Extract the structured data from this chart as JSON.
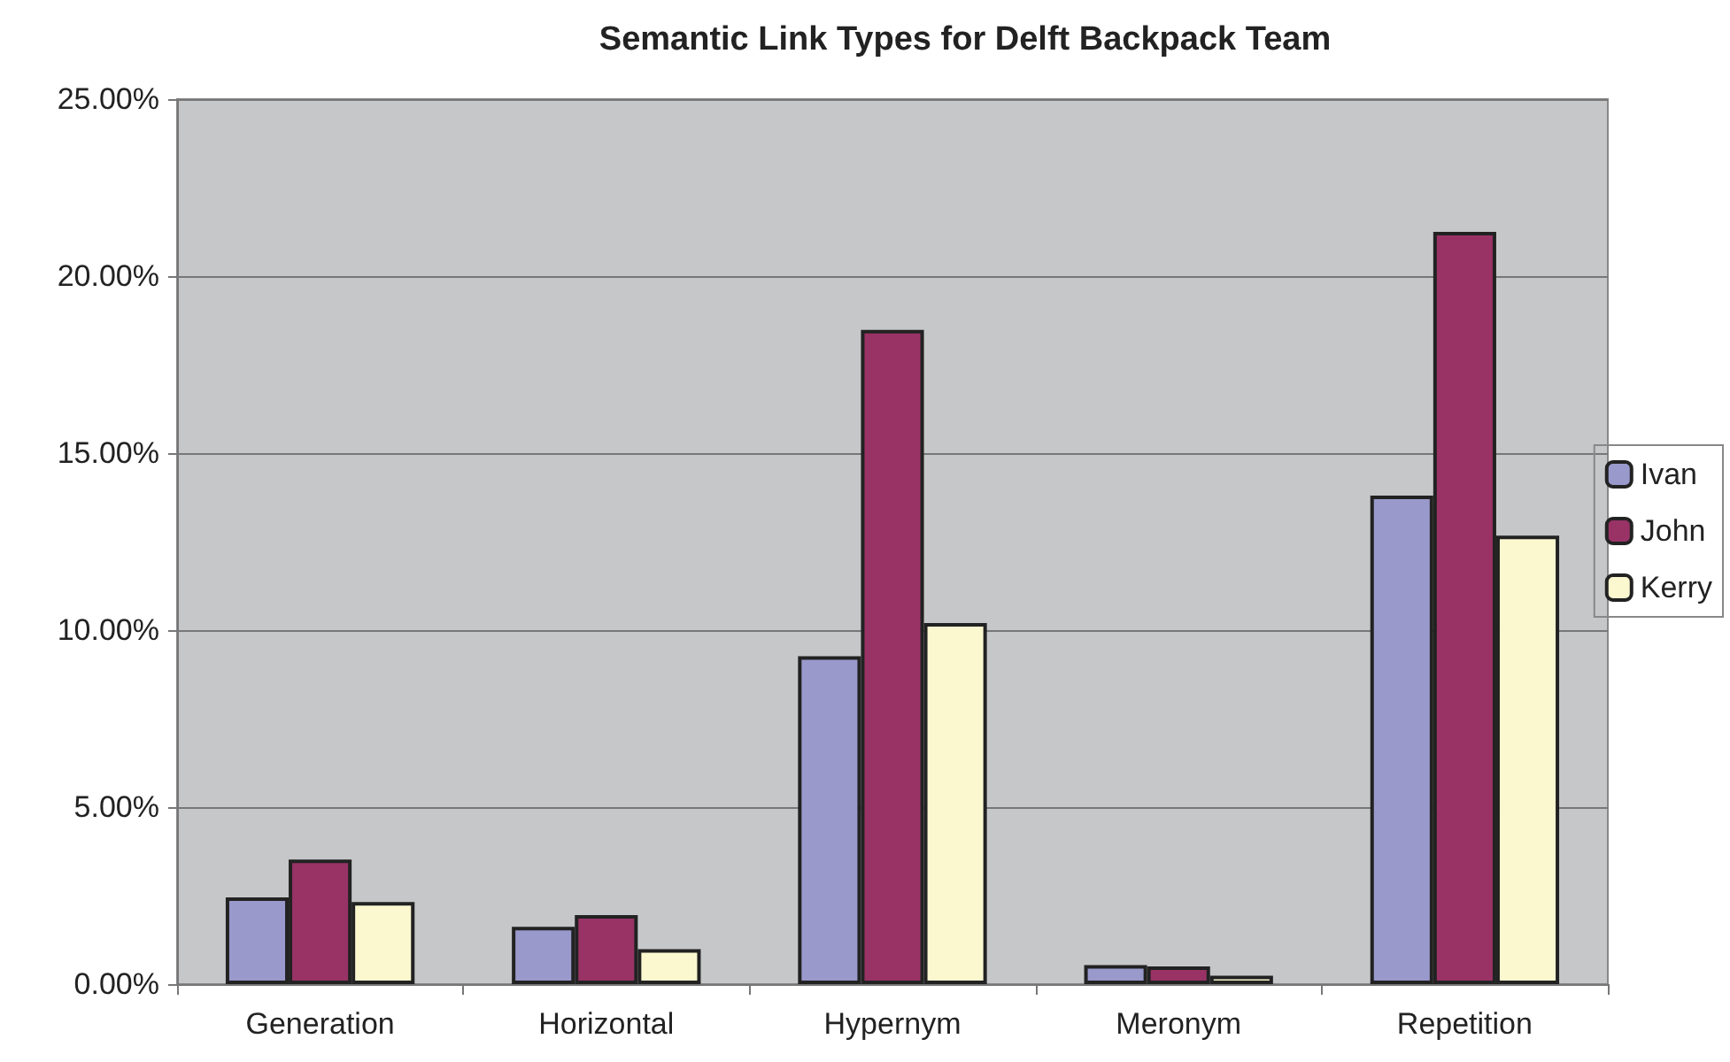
{
  "chart_data": {
    "type": "bar",
    "title": "Semantic Link Types for Delft Backpack Team",
    "categories": [
      "Generation",
      "Horizontal",
      "Hypernym",
      "Meronym",
      "Repetition"
    ],
    "series": [
      {
        "name": "Ivan",
        "color": "#9999cc",
        "values": [
          2.45,
          1.62,
          9.26,
          0.54,
          13.8
        ]
      },
      {
        "name": "John",
        "color": "#993366",
        "values": [
          3.52,
          1.95,
          18.48,
          0.5,
          21.25
        ]
      },
      {
        "name": "Kerry",
        "color": "#fbf8d0",
        "values": [
          2.32,
          0.99,
          10.2,
          0.24,
          12.67
        ]
      }
    ],
    "ylim": [
      0,
      25
    ],
    "yticks": [
      {
        "value": 0,
        "label": "0.00%"
      },
      {
        "value": 5,
        "label": "5.00%"
      },
      {
        "value": 10,
        "label": "10.00%"
      },
      {
        "value": 15,
        "label": "15.00%"
      },
      {
        "value": 20,
        "label": "20.00%"
      },
      {
        "value": 25,
        "label": "25.00%"
      }
    ],
    "grid": "y",
    "legend": "right"
  }
}
